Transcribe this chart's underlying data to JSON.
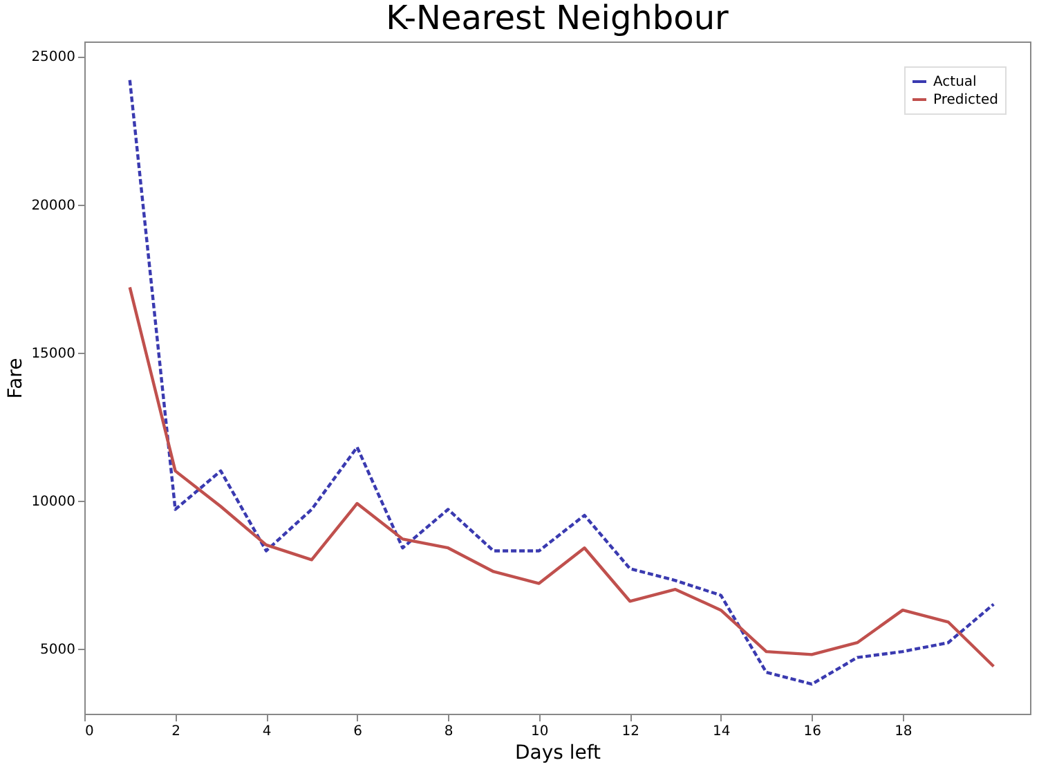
{
  "chart_data": {
    "type": "line",
    "title": "K-Nearest Neighbour",
    "xlabel": "Days left",
    "ylabel": "Fare",
    "x": [
      1,
      2,
      3,
      4,
      5,
      6,
      7,
      8,
      9,
      10,
      11,
      12,
      13,
      14,
      15,
      16,
      17,
      18,
      19,
      20
    ],
    "series": [
      {
        "name": "Actual",
        "color": "#3a3ab0",
        "line_style": "dashed",
        "values": [
          24200,
          9700,
          11000,
          8300,
          9700,
          11800,
          8400,
          9700,
          8300,
          8300,
          9500,
          7700,
          7300,
          6800,
          4200,
          3800,
          4700,
          4900,
          5200,
          6500
        ]
      },
      {
        "name": "Predicted",
        "color": "#c0504d",
        "line_style": "solid",
        "values": [
          17200,
          11000,
          9800,
          8500,
          8000,
          9900,
          8700,
          8400,
          7600,
          7200,
          8400,
          6600,
          7000,
          6300,
          4900,
          4800,
          5200,
          6300,
          5900,
          4400
        ]
      }
    ],
    "xlim": [
      0,
      20.8
    ],
    "xticks": [
      0,
      2,
      4,
      6,
      8,
      10,
      12,
      14,
      16,
      18
    ],
    "ylim": [
      2800,
      25500
    ],
    "yticks": [
      5000,
      10000,
      15000,
      20000,
      25000
    ],
    "grid": false,
    "legend": "top right",
    "marker": "none"
  }
}
